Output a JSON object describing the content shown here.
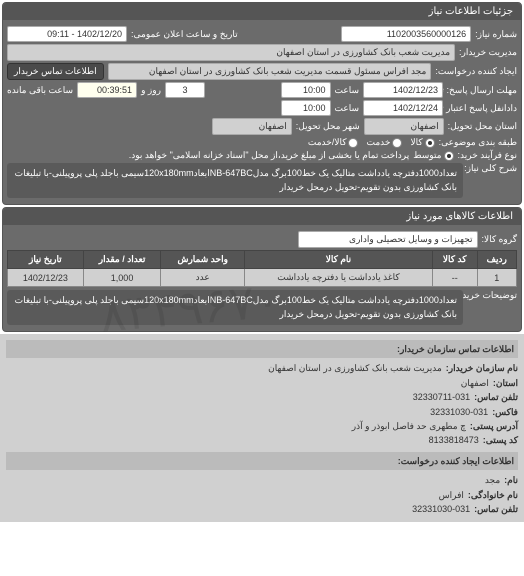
{
  "panels": {
    "main_title": "جزئیات اطلاعات نیاز",
    "goods_title": "اطلاعات کالاهای مورد نیاز",
    "contact_title": "اطلاعات تماس سازمان خریدار:",
    "creator_title": "اطلاعات ایجاد کننده درخواست:"
  },
  "request": {
    "number_label": "شماره نیاز:",
    "number": "1102003560000126",
    "datetime_label": "تاریخ و ساعت اعلان عمومی:",
    "datetime": "1402/12/20 - 09:11",
    "buyer_mgmt_label": "مدیریت خریدار:",
    "buyer_mgmt": "مدیریت شعب بانک کشاورزی در استان اصفهان",
    "request_creator_label": "ایجاد کننده درخواست:",
    "request_creator": "مجد افراس مسئول قسمت مدیریت شعب بانک کشاورزی در استان اصفهان",
    "buyer_contact_btn": "اطلاعات تماس خریدار",
    "deadline_label": "مهلت ارسال پاسخ: تا تاریخ:",
    "deadline_date": "1402/12/23",
    "time_label": "ساعت",
    "deadline_time": "10:00",
    "days_label": "روز و",
    "days": "3",
    "remaining_label": "ساعت باقی مانده",
    "remaining": "00:39:51",
    "exec_label": "دادانفل پاسخ اعتبار تاریخ: تا قیمت:",
    "exec_date": "1402/12/24",
    "exec_time": "10:00",
    "delivery_state_label": "استان محل تحویل:",
    "delivery_state": "اصفهان",
    "delivery_city_label": "شهر محل تحویل:",
    "delivery_city": "اصفهان",
    "budget_row_label": "طبقه بندی موضوعی:",
    "radio_kala": "کالا",
    "radio_khedmat": "خدمت",
    "radio_kala_khedmat": "کالا/خدمت",
    "procure_label": "نوع فرآیند خرید:",
    "radio_mid": "متوسط",
    "procure_note": "پرداخت تمام یا بخشی از مبلغ خرید،از محل \"اسناد خزانه اسلامی\" خواهد بود.",
    "desc_label": "شرح کلی نیاز:",
    "desc": "تعداد1000دفترچه یادداشت متالیک یک خط100برگ مدلNB-647BCابعاد120x180mmسیمی باجلد پلی پروپیلنی-با تبلیغات بانک کشاورزی بدون تقویم-تحویل درمحل خریدار"
  },
  "goods": {
    "group_label": "گروه کالا:",
    "group": "تجهیزات و وسایل تحصیلی واداری",
    "table": {
      "headers": [
        "ردیف",
        "کد کالا",
        "نام کالا",
        "واحد شمارش",
        "تعداد / مقدار",
        "تاریخ نیاز"
      ],
      "rows": [
        [
          "1",
          "--",
          "کاغذ یادداشت یا دفترچه یادداشت",
          "عدد",
          "1,000",
          "1402/12/23"
        ]
      ]
    },
    "buyer_note_label": "توضیحات خریدار:",
    "buyer_note": "تعداد1000دفترچه یادداشت متالیک یک خط100برگ مدلNB-647BCابعاد120x180mmسیمی باجلد پلی پروپیلنی-با تبلیغات بانک کشاورزی بدون تقویم-تحویل درمحل خریدار"
  },
  "contact": {
    "org_label": "نام سازمان خریدار:",
    "org": "مدیریت شعب بانک کشاورزی در استان اصفهان",
    "state_label": "استان:",
    "state": "اصفهان",
    "phone_label": "تلفن تماس:",
    "phone": "32330711-031",
    "fax_label": "فاکس:",
    "fax": "32331030-031",
    "address_label": "آدرس پستی:",
    "address": "چ مطهری حد فاصل ابوذر و آذر",
    "postal_label": "کد پستی:",
    "postal": "8133818473"
  },
  "creator": {
    "name_label": "نام:",
    "name": "مجد",
    "family_label": "نام خانوادگی:",
    "family": "افراس",
    "phone_label": "تلفن تماس:",
    "phone": "32331030-031"
  },
  "watermark": "۸۳۴۹۶۷۰"
}
